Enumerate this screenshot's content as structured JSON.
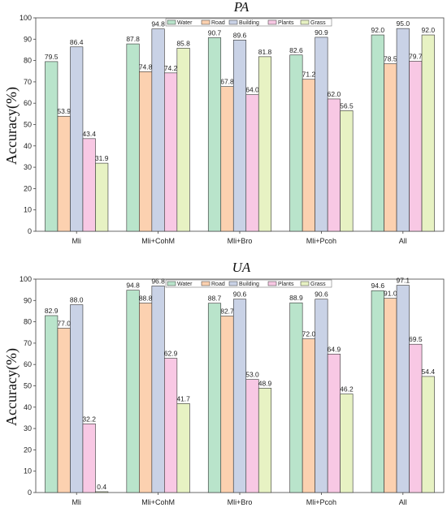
{
  "colors": {
    "Water": "#b9e4cb",
    "Road": "#fcd1b0",
    "Building": "#c9d2e6",
    "Plants": "#f8c8e4",
    "Grass": "#e7f2c3",
    "stroke": "#333333"
  },
  "chart_data": [
    {
      "type": "bar",
      "title": "PA",
      "xlabel": "",
      "ylabel": "Accuracy(%)",
      "ylim": [
        0,
        100
      ],
      "yticks": [
        0,
        10,
        20,
        30,
        40,
        50,
        60,
        70,
        80,
        90,
        100
      ],
      "legend_position": "top-center",
      "grid": false,
      "categories": [
        "Mli",
        "Mli+CohM",
        "Mli+Bro",
        "Mli+Pcoh",
        "All"
      ],
      "series": [
        {
          "name": "Water",
          "values": [
            79.5,
            87.8,
            90.7,
            82.6,
            92.0
          ],
          "labels": [
            "79.5",
            "87.8",
            "90.7",
            "82.6",
            "92.0"
          ]
        },
        {
          "name": "Road",
          "values": [
            53.9,
            74.8,
            67.8,
            71.2,
            78.5
          ],
          "labels": [
            "53.9",
            "74.8",
            "67.8",
            "71.2",
            "78.5"
          ]
        },
        {
          "name": "Building",
          "values": [
            86.4,
            94.8,
            89.6,
            90.9,
            95.0
          ],
          "labels": [
            "86.4",
            "94.8",
            "89.6",
            "90.9",
            "95.0"
          ]
        },
        {
          "name": "Plants",
          "values": [
            43.4,
            74.2,
            64.0,
            62.0,
            79.7
          ],
          "labels": [
            "43.4",
            "74.2",
            "64.0",
            "62.0",
            "79.7"
          ]
        },
        {
          "name": "Grass",
          "values": [
            31.9,
            85.8,
            81.8,
            56.5,
            92.0
          ],
          "labels": [
            "31.9",
            "85.8",
            "81.8",
            "56.5",
            "92.0"
          ]
        }
      ]
    },
    {
      "type": "bar",
      "title": "UA",
      "xlabel": "",
      "ylabel": "Accuracy(%)",
      "ylim": [
        0,
        100
      ],
      "yticks": [
        0,
        10,
        20,
        30,
        40,
        50,
        60,
        70,
        80,
        90,
        100
      ],
      "legend_position": "top-center",
      "grid": false,
      "categories": [
        "Mli",
        "Mli+CohM",
        "Mli+Bro",
        "Mli+Pcoh",
        "All"
      ],
      "series": [
        {
          "name": "Water",
          "values": [
            82.9,
            94.8,
            88.7,
            88.9,
            94.6
          ],
          "labels": [
            "82.9",
            "94.8",
            "88.7",
            "88.9",
            "94.6"
          ]
        },
        {
          "name": "Road",
          "values": [
            77.0,
            88.8,
            82.7,
            72.0,
            91.0
          ],
          "labels": [
            "77.0",
            "88.8",
            "82.7",
            "72.0",
            "91.0"
          ]
        },
        {
          "name": "Building",
          "values": [
            88.0,
            96.8,
            90.6,
            90.6,
            97.1
          ],
          "labels": [
            "88.0",
            "96.8",
            "90.6",
            "90.6",
            "97.1"
          ]
        },
        {
          "name": "Plants",
          "values": [
            32.2,
            62.9,
            53.0,
            64.9,
            69.5
          ],
          "labels": [
            "32.2",
            "62.9",
            "53.0",
            "64.9",
            "69.5"
          ]
        },
        {
          "name": "Grass",
          "values": [
            0.4,
            41.7,
            48.9,
            46.2,
            54.4
          ],
          "labels": [
            "0.4",
            "41.7",
            "48.9",
            "46.2",
            "54.4"
          ]
        }
      ]
    }
  ]
}
